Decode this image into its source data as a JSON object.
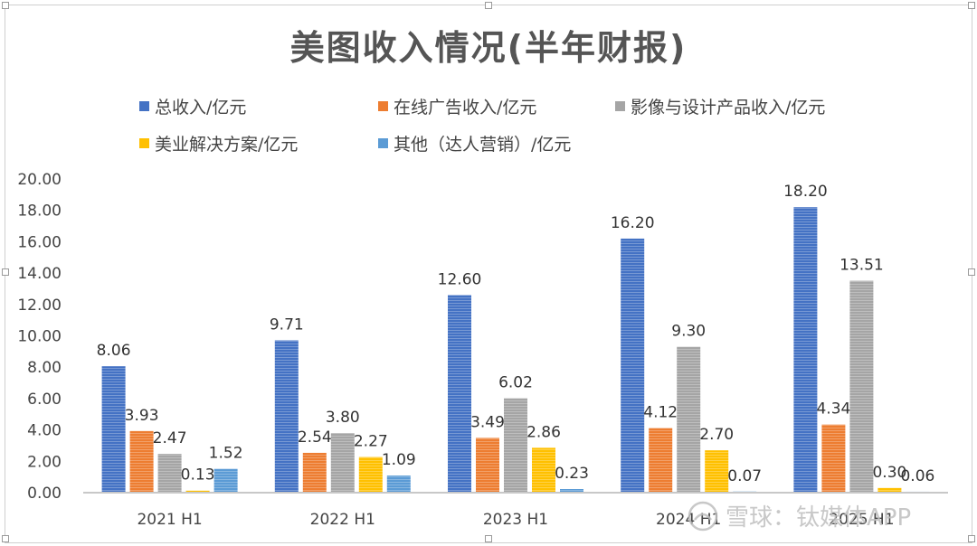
{
  "chart_data": {
    "type": "bar",
    "title": "美图收入情况(半年财报)",
    "categories": [
      "2021 H1",
      "2022 H1",
      "2023 H1",
      "2024 H1",
      "2025 H1"
    ],
    "series": [
      {
        "name": "总收入/亿元",
        "color": "#4472C4",
        "values": [
          8.06,
          9.71,
          12.6,
          16.2,
          18.2
        ],
        "labels": [
          "8.06",
          "9.71",
          "12.60",
          "16.20",
          "18.20"
        ]
      },
      {
        "name": "在线广告收入/亿元",
        "color": "#ED7D31",
        "values": [
          3.93,
          2.54,
          3.49,
          4.12,
          4.34
        ],
        "labels": [
          "3.93",
          "2.54",
          "3.49",
          "4.12",
          "4.34"
        ]
      },
      {
        "name": "影像与设计产品收入/亿元",
        "color": "#A5A5A5",
        "values": [
          2.47,
          3.8,
          6.02,
          9.3,
          13.51
        ],
        "labels": [
          "2.47",
          "3.80",
          "6.02",
          "9.30",
          "13.51"
        ]
      },
      {
        "name": "美业解决方案/亿元",
        "color": "#FFC000",
        "values": [
          0.13,
          2.27,
          2.86,
          2.7,
          0.3
        ],
        "labels": [
          "0.13",
          "2.27",
          "2.86",
          "2.70",
          "0.30"
        ]
      },
      {
        "name": "其他（达人营销）/亿元",
        "color": "#5B9BD5",
        "values": [
          1.52,
          1.09,
          0.23,
          0.07,
          0.06
        ],
        "labels": [
          "1.52",
          "1.09",
          "0.23",
          "0.07",
          "0.06"
        ]
      }
    ],
    "ylim": [
      0,
      20
    ],
    "yticks": [
      "0.00",
      "2.00",
      "4.00",
      "6.00",
      "8.00",
      "10.00",
      "12.00",
      "14.00",
      "16.00",
      "18.00",
      "20.00"
    ],
    "xlabel": "",
    "ylabel": "",
    "grid": false,
    "legend_position": "top"
  },
  "watermark": {
    "text": "雪球：钛媒体APP"
  }
}
